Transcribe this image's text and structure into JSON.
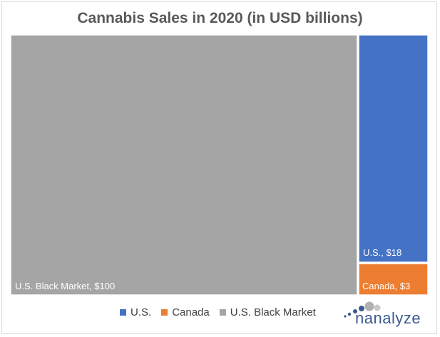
{
  "chart_data": {
    "type": "treemap",
    "title": "Cannabis Sales in 2020 (in USD billions)",
    "items": [
      {
        "name": "U.S. Black Market",
        "value": 100,
        "label": "U.S. Black Market,  $100",
        "color": "#a5a5a5"
      },
      {
        "name": "U.S.",
        "value": 18,
        "label": "U.S.,  $18",
        "color": "#4472c4"
      },
      {
        "name": "Canada",
        "value": 3,
        "label": "Canada,  $3",
        "color": "#ed7d31"
      }
    ],
    "legend": [
      {
        "name": "U.S.",
        "color": "#4472c4"
      },
      {
        "name": "Canada",
        "color": "#ed7d31"
      },
      {
        "name": "U.S. Black Market",
        "color": "#a5a5a5"
      }
    ],
    "legend_position": "bottom"
  },
  "logo": {
    "text": "nanalyze",
    "color": "#3c5a8f"
  }
}
